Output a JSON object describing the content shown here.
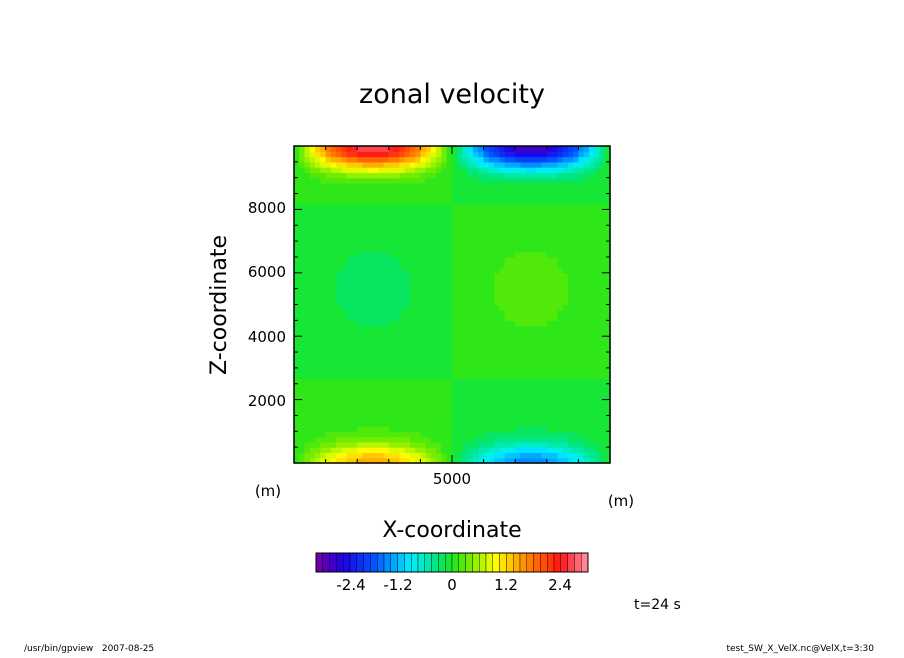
{
  "chart_data": {
    "type": "heatmap",
    "title": "zonal velocity",
    "xlabel": "X-coordinate",
    "ylabel": "Z-coordinate",
    "x_unit": "(m)",
    "y_unit": "(m)",
    "x_range": [
      0,
      10000
    ],
    "y_range": [
      0,
      10000
    ],
    "x_ticks": [
      "5000"
    ],
    "y_ticks": [
      "2000",
      "4000",
      "6000",
      "8000"
    ],
    "colorbar": {
      "ticks": [
        "-2.4",
        "-1.2",
        "0",
        "1.2",
        "2.4"
      ],
      "range": [
        -3.0,
        3.0
      ],
      "levels": 40
    },
    "field_extremes": [
      {
        "x": 2500,
        "z": 9600,
        "value": 2.6
      },
      {
        "x": 7500,
        "z": 9600,
        "value": -2.6
      },
      {
        "x": 2500,
        "z": 400,
        "value": 1.3
      },
      {
        "x": 7500,
        "z": 400,
        "value": -1.3
      }
    ]
  },
  "annotation": {
    "time_label": "t=24 s"
  },
  "footer": {
    "left": "/usr/bin/gpview   2007-08-25",
    "right": "test_SW_X_VelX.nc@VelX,t=3:30"
  }
}
